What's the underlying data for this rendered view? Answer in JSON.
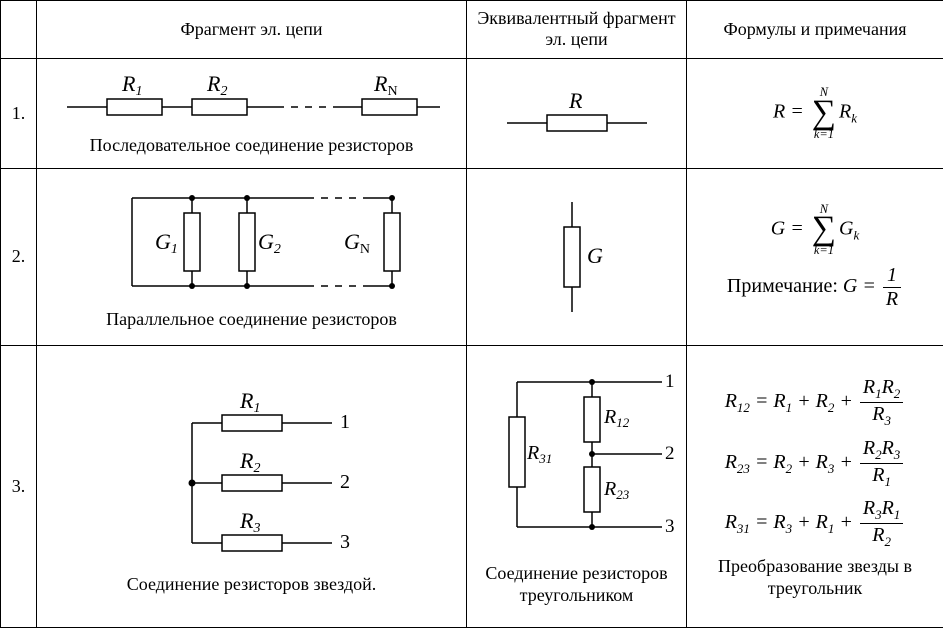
{
  "headers": {
    "num": "",
    "frag": "Фрагмент эл. цепи",
    "eq": "Эквивалентный фрагмент эл. цепи",
    "form": "Формулы и примечания"
  },
  "rows": [
    {
      "num": "1.",
      "frag_caption": "Последовательное соединение резисторов",
      "eq_label": "R",
      "labels": [
        "R",
        "1",
        "R",
        "2",
        "R",
        "N"
      ],
      "formula_lhs": "R",
      "sum_top": "N",
      "sum_bot": "k=1",
      "sum_term": [
        "R",
        "k"
      ]
    },
    {
      "num": "2.",
      "frag_caption": "Параллельное соединение резисторов",
      "eq_label": "G",
      "labels": [
        "G",
        "1",
        "G",
        "2",
        "G",
        "N"
      ],
      "formula_lhs": "G",
      "sum_top": "N",
      "sum_bot": "k=1",
      "sum_term": [
        "G",
        "k"
      ],
      "note_prefix": "Примечание: ",
      "note_lhs": "G",
      "note_frac_num": "1",
      "note_frac_den": "R"
    },
    {
      "num": "3.",
      "frag_caption": "Соединение резисторов звездой.",
      "eq_caption": "Соединение резисторов треугольником",
      "star_labels": [
        "R",
        "1",
        "R",
        "2",
        "R",
        "3"
      ],
      "terminals": [
        "1",
        "2",
        "3"
      ],
      "delta_labels": [
        "R",
        "31",
        "R",
        "12",
        "R",
        "23"
      ],
      "formulas": [
        {
          "lhs": [
            "R",
            "12"
          ],
          "a": [
            "R",
            "1"
          ],
          "b": [
            "R",
            "2"
          ],
          "num": [
            "R",
            "1",
            "R",
            "2"
          ],
          "den": [
            "R",
            "3"
          ]
        },
        {
          "lhs": [
            "R",
            "23"
          ],
          "a": [
            "R",
            "2"
          ],
          "b": [
            "R",
            "3"
          ],
          "num": [
            "R",
            "2",
            "R",
            "3"
          ],
          "den": [
            "R",
            "1"
          ]
        },
        {
          "lhs": [
            "R",
            "31"
          ],
          "a": [
            "R",
            "3"
          ],
          "b": [
            "R",
            "1"
          ],
          "num": [
            "R",
            "3",
            "R",
            "1"
          ],
          "den": [
            "R",
            "2"
          ]
        }
      ],
      "form_caption": "Преобразование звезды в треугольник"
    }
  ],
  "style": {
    "stroke": "#000000",
    "bg": "#ffffff",
    "font": "Times New Roman",
    "stroke_width": 1.5
  }
}
